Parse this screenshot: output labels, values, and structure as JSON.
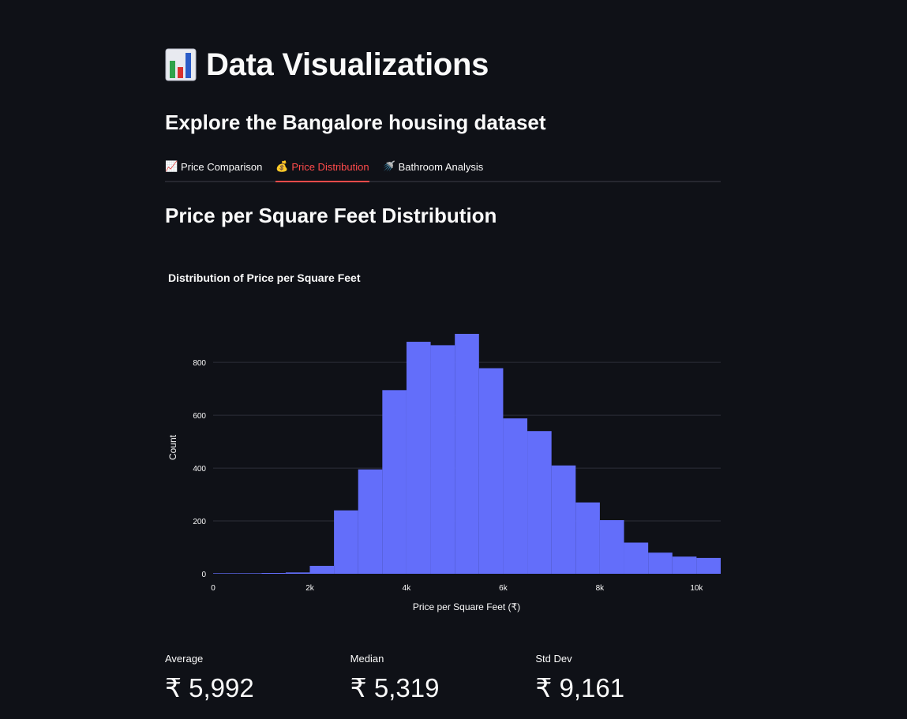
{
  "header": {
    "title_icon": "bar-chart-icon",
    "title": "Data Visualizations",
    "subtitle": "Explore the Bangalore housing dataset"
  },
  "tabs": [
    {
      "icon": "chart-increasing-icon",
      "glyph": "📈",
      "label": "Price Comparison",
      "active": false
    },
    {
      "icon": "money-bag-icon",
      "glyph": "💰",
      "label": "Price Distribution",
      "active": true
    },
    {
      "icon": "shower-icon",
      "glyph": "🚿",
      "label": "Bathroom Analysis",
      "active": false
    }
  ],
  "section": {
    "title": "Price per Square Feet Distribution"
  },
  "chart_data": {
    "type": "bar",
    "title": "Distribution of Price per Square Feet",
    "xlabel": "Price per Square Feet (₹)",
    "ylabel": "Count",
    "bin_edges": [
      0,
      500,
      1000,
      1500,
      2000,
      2500,
      3000,
      3500,
      4000,
      4500,
      5000,
      5500,
      6000,
      6500,
      7000,
      7500,
      8000,
      8500,
      9000,
      9500,
      10000,
      10500
    ],
    "values": [
      2,
      2,
      3,
      5,
      30,
      240,
      395,
      695,
      878,
      865,
      908,
      778,
      588,
      540,
      410,
      270,
      203,
      118,
      80,
      65,
      60
    ],
    "xlim": [
      0,
      10500
    ],
    "ylim": [
      0,
      908
    ],
    "x_ticks": [
      0,
      2000,
      4000,
      6000,
      8000,
      10000
    ],
    "x_tick_labels": [
      "0",
      "2k",
      "4k",
      "6k",
      "8k",
      "10k"
    ],
    "y_ticks": [
      0,
      200,
      400,
      600,
      800
    ],
    "y_tick_labels": [
      "0",
      "200",
      "400",
      "600",
      "800"
    ],
    "grid": true,
    "bar_color": "#636efa",
    "grid_color": "#2c2f38"
  },
  "metrics": [
    {
      "label": "Average",
      "value": "₹ 5,992"
    },
    {
      "label": "Median",
      "value": "₹ 5,319"
    },
    {
      "label": "Std Dev",
      "value": "₹ 9,161"
    }
  ],
  "colors": {
    "background": "#0f1117",
    "text": "#fafafa",
    "accent": "#ff4b4b"
  }
}
